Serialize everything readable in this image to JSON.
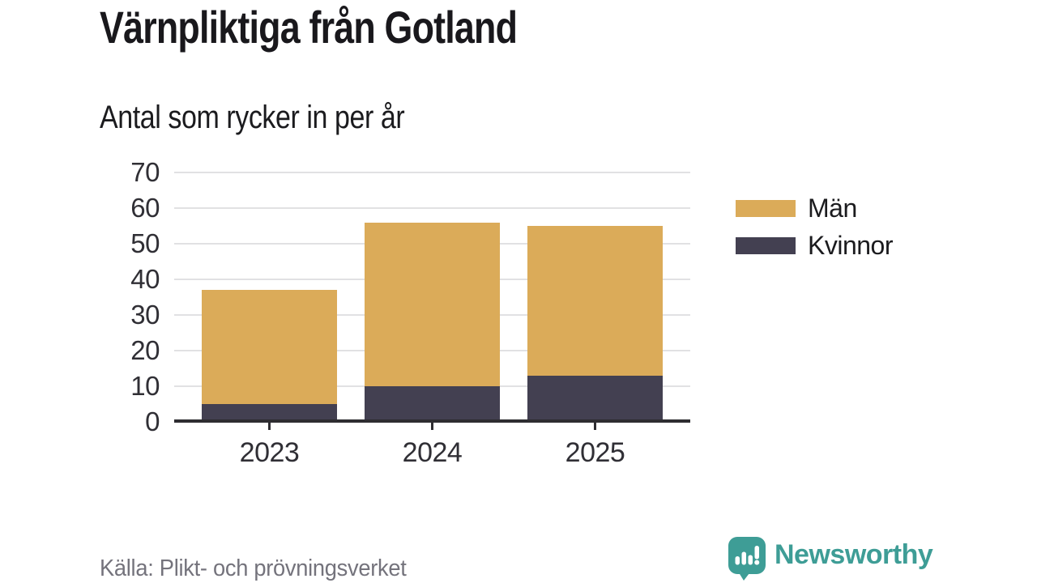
{
  "header": {
    "title": "Värnpliktiga från Gotland",
    "subtitle": "Antal som rycker in per år"
  },
  "chart_data": {
    "type": "bar",
    "stacked": true,
    "title": "Värnpliktiga från Gotland",
    "subtitle": "Antal som rycker in per år",
    "categories": [
      "2023",
      "2024",
      "2025"
    ],
    "series": [
      {
        "name": "Män",
        "color": "#DBAB59",
        "values": [
          32,
          46,
          42
        ]
      },
      {
        "name": "Kvinnor",
        "color": "#434051",
        "values": [
          5,
          10,
          13
        ]
      }
    ],
    "stack_order_bottom_to_top": [
      "Kvinnor",
      "Män"
    ],
    "totals": [
      37,
      56,
      55
    ],
    "xlabel": "",
    "ylabel": "",
    "ylim": [
      0,
      70
    ],
    "yticks": [
      0,
      10,
      20,
      30,
      40,
      50,
      60,
      70
    ],
    "grid": "horizontal",
    "legend_position": "right"
  },
  "footer": {
    "source": "Källa: Plikt- och prövningsverket",
    "brand": "Newsworthy",
    "brand_icon": "speech-bubble-bar-chart-icon"
  },
  "colors": {
    "brand_teal": "#3E9D96",
    "axis": "#2E2D31",
    "grid": "#E1E1E3",
    "text": "#19181C",
    "muted": "#74737C"
  }
}
